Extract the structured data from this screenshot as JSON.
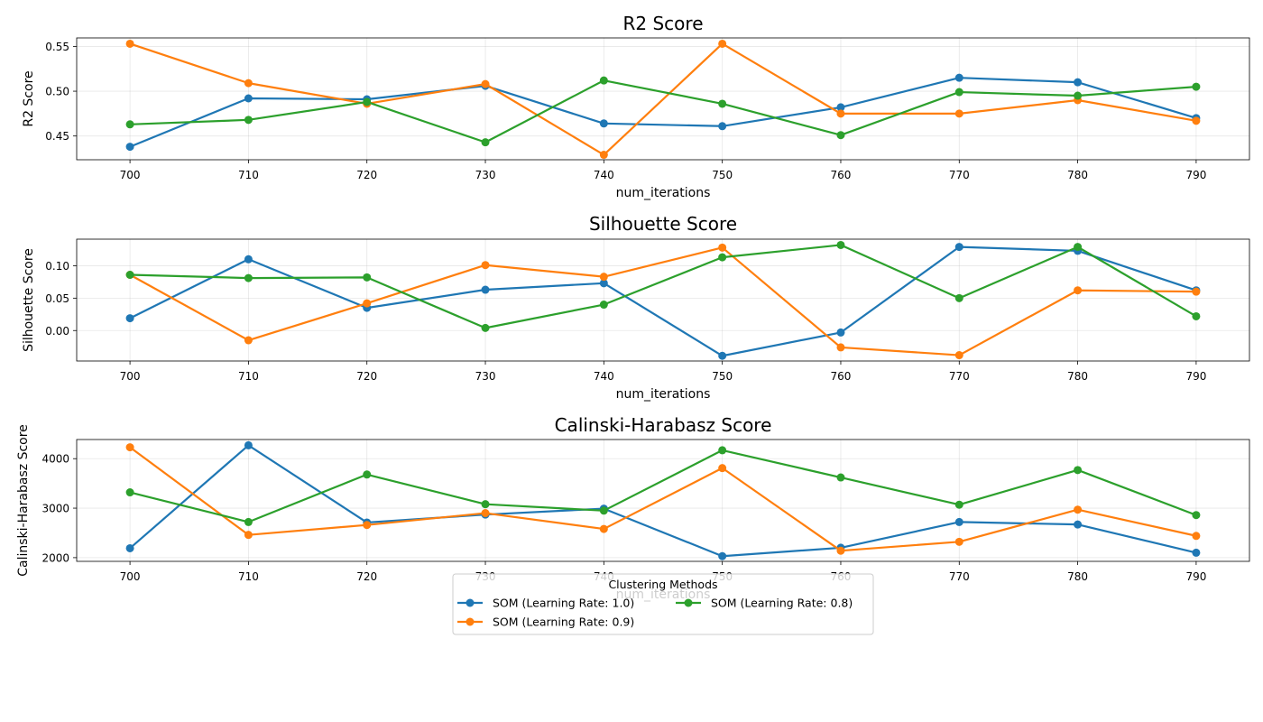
{
  "chart_data": [
    {
      "type": "line",
      "title": "R2 Score",
      "xlabel": "num_iterations",
      "ylabel": "R2 Score",
      "x": [
        700,
        710,
        720,
        730,
        740,
        750,
        760,
        770,
        780,
        790
      ],
      "xlim": [
        695.5,
        794.5
      ],
      "ylim": [
        0.4235,
        0.5595
      ],
      "yticks": [
        0.45,
        0.5,
        0.55
      ],
      "ytick_labels": [
        "0.45",
        "0.50",
        "0.55"
      ],
      "grid": true,
      "series": [
        {
          "name": "SOM (Learning Rate: 1.0)",
          "color": "#1f77b4",
          "values": [
            0.438,
            0.492,
            0.491,
            0.506,
            0.464,
            0.461,
            0.482,
            0.515,
            0.51,
            0.47
          ]
        },
        {
          "name": "SOM (Learning Rate: 0.9)",
          "color": "#ff7f0e",
          "values": [
            0.553,
            0.509,
            0.486,
            0.508,
            0.429,
            0.553,
            0.475,
            0.475,
            0.49,
            0.467
          ]
        },
        {
          "name": "SOM (Learning Rate: 0.8)",
          "color": "#2ca02c",
          "values": [
            0.463,
            0.468,
            0.488,
            0.443,
            0.512,
            0.486,
            0.451,
            0.499,
            0.495,
            0.505
          ]
        }
      ]
    },
    {
      "type": "line",
      "title": "Silhouette Score",
      "xlabel": "num_iterations",
      "ylabel": "Silhouette Score",
      "x": [
        700,
        710,
        720,
        730,
        740,
        750,
        760,
        770,
        780,
        790
      ],
      "xlim": [
        695.5,
        794.5
      ],
      "ylim": [
        -0.047,
        0.141
      ],
      "yticks": [
        0.0,
        0.05,
        0.1
      ],
      "ytick_labels": [
        "0.00",
        "0.05",
        "0.10"
      ],
      "grid": true,
      "series": [
        {
          "name": "SOM (Learning Rate: 1.0)",
          "color": "#1f77b4",
          "values": [
            0.019,
            0.11,
            0.035,
            0.063,
            0.073,
            -0.039,
            -0.003,
            0.129,
            0.123,
            0.062
          ]
        },
        {
          "name": "SOM (Learning Rate: 0.9)",
          "color": "#ff7f0e",
          "values": [
            0.086,
            -0.015,
            0.042,
            0.101,
            0.083,
            0.128,
            -0.026,
            -0.038,
            0.062,
            0.06
          ]
        },
        {
          "name": "SOM (Learning Rate: 0.8)",
          "color": "#2ca02c",
          "values": [
            0.086,
            0.081,
            0.082,
            0.004,
            0.04,
            0.113,
            0.132,
            0.05,
            0.129,
            0.022
          ]
        }
      ]
    },
    {
      "type": "line",
      "title": "Calinski-Harabasz Score",
      "xlabel": "num_iterations",
      "ylabel": "Calinski-Harabasz Score",
      "x": [
        700,
        710,
        720,
        730,
        740,
        750,
        760,
        770,
        780,
        790
      ],
      "xlim": [
        695.5,
        794.5
      ],
      "ylim": [
        1925,
        4387
      ],
      "yticks": [
        2000,
        3000,
        4000
      ],
      "ytick_labels": [
        "2000",
        "3000",
        "4000"
      ],
      "grid": true,
      "series": [
        {
          "name": "SOM (Learning Rate: 1.0)",
          "color": "#1f77b4",
          "values": [
            2190,
            4270,
            2710,
            2870,
            2990,
            2030,
            2200,
            2720,
            2670,
            2100
          ]
        },
        {
          "name": "SOM (Learning Rate: 0.9)",
          "color": "#ff7f0e",
          "values": [
            4230,
            2460,
            2660,
            2900,
            2580,
            3810,
            2140,
            2320,
            2970,
            2440
          ]
        },
        {
          "name": "SOM (Learning Rate: 0.8)",
          "color": "#2ca02c",
          "values": [
            3320,
            2720,
            3680,
            3080,
            2950,
            4170,
            3620,
            3070,
            3770,
            2860
          ]
        }
      ]
    }
  ],
  "legend": {
    "title": "Clustering Methods",
    "placement": "bottom-center",
    "entries": [
      "SOM (Learning Rate: 1.0)",
      "SOM (Learning Rate: 0.9)",
      "SOM (Learning Rate: 0.8)"
    ]
  }
}
